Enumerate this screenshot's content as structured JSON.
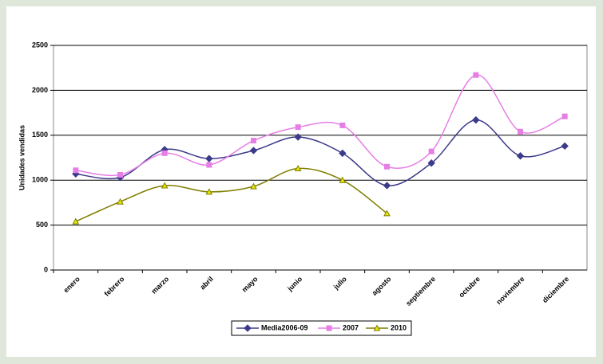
{
  "chart_data": {
    "type": "line",
    "y_label": "Unidades vendidas",
    "categories": [
      "enero",
      "febrero",
      "marzo",
      "abril",
      "mayo",
      "junio",
      "julio",
      "agosto",
      "septiembre",
      "octubre",
      "noviembre",
      "diciembre"
    ],
    "series": [
      {
        "name": "Media2006-09",
        "color": "#3c3a8a",
        "marker": "diamond",
        "values": [
          1070,
          1030,
          1340,
          1240,
          1330,
          1480,
          1300,
          940,
          1190,
          1670,
          1270,
          1380
        ]
      },
      {
        "name": "2007",
        "color": "#e67ee6",
        "marker": "square",
        "values": [
          1110,
          1060,
          1300,
          1170,
          1440,
          1590,
          1610,
          1150,
          1320,
          2170,
          1540,
          1710
        ]
      },
      {
        "name": "2010",
        "color": "#7f7f00",
        "marker": "triangle",
        "values": [
          540,
          760,
          940,
          870,
          930,
          1130,
          1000,
          630,
          null,
          null,
          null,
          null
        ]
      }
    ],
    "ylim": [
      0,
      2500
    ],
    "yticks": [
      0,
      500,
      1000,
      1500,
      2000,
      2500
    ],
    "grid": true,
    "smooth": true,
    "legend": "bottom"
  }
}
